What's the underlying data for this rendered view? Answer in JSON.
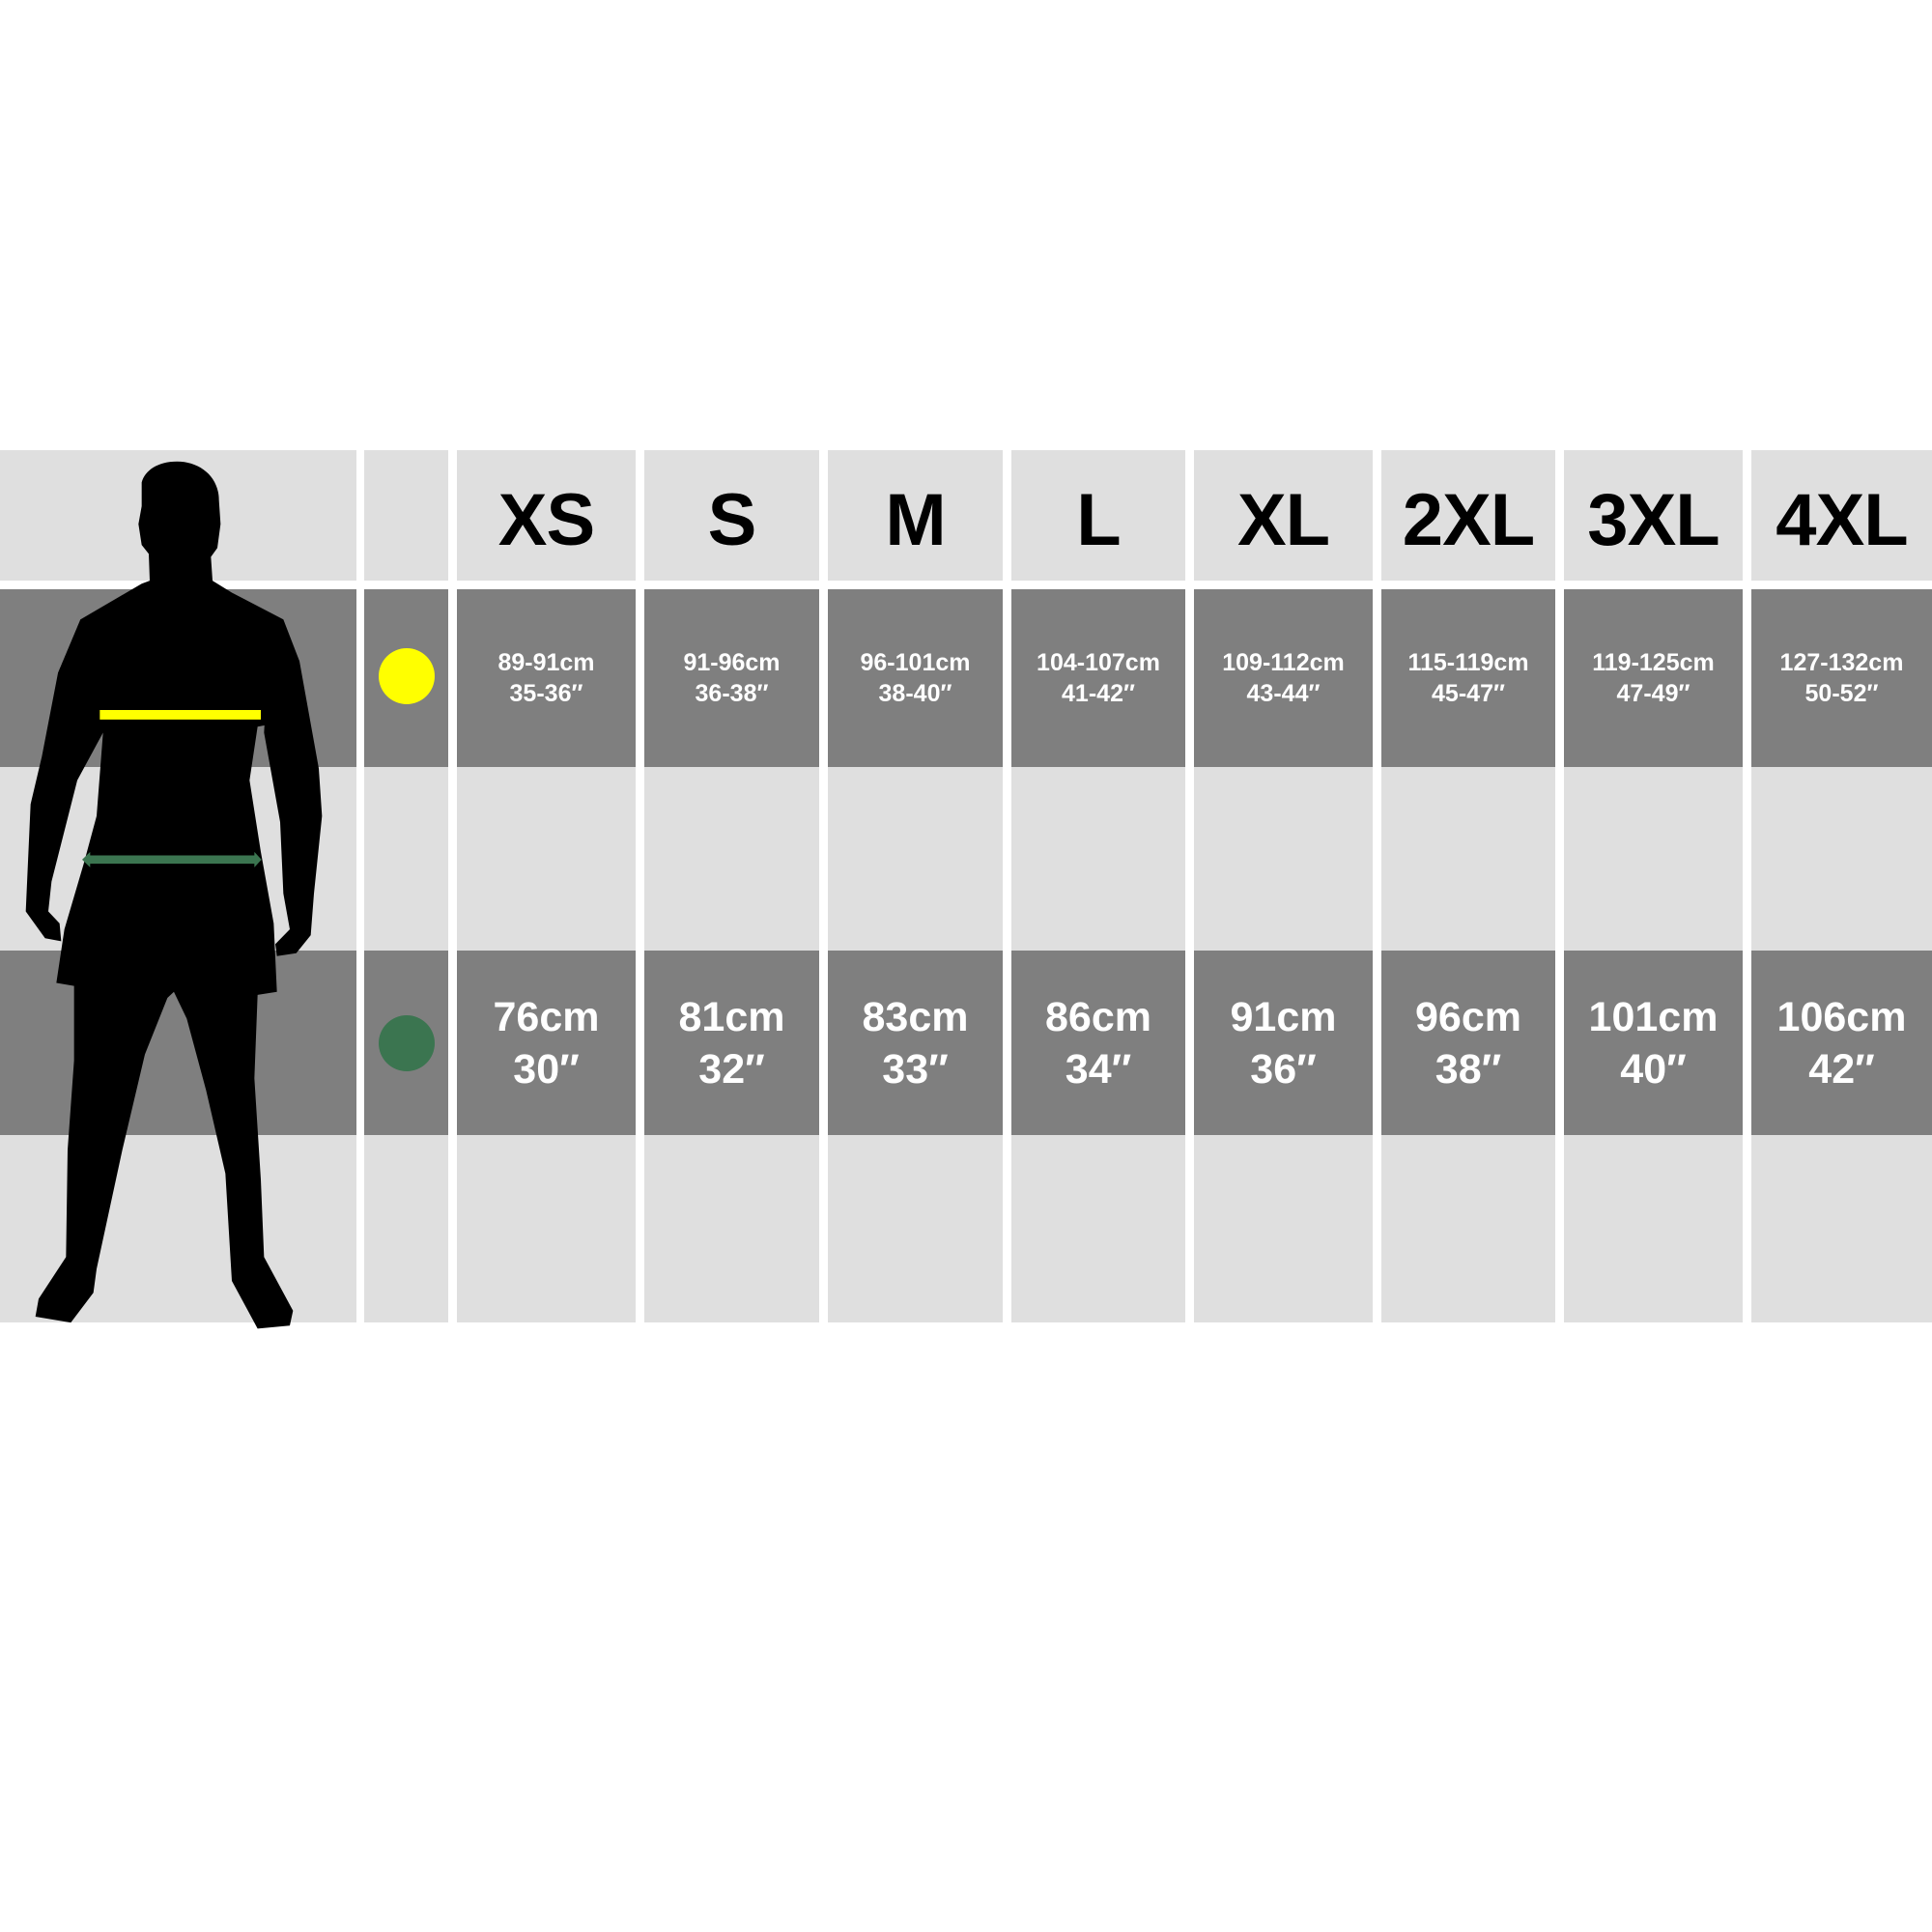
{
  "colors": {
    "chest_marker": "#ffff00",
    "waist_marker": "#3b7550",
    "light_row": "#dfdfdf",
    "dark_row": "#7f7f7f",
    "silhouette": "#000000"
  },
  "icons": {
    "chest": "yellow-dot",
    "waist": "green-dot",
    "figure": "male-silhouette"
  },
  "sizes": [
    "XS",
    "S",
    "M",
    "L",
    "XL",
    "2XL",
    "3XL",
    "4XL"
  ],
  "chest": [
    {
      "cm": "89-91cm",
      "in": "35-36″"
    },
    {
      "cm": "91-96cm",
      "in": "36-38″"
    },
    {
      "cm": "96-101cm",
      "in": "38-40″"
    },
    {
      "cm": "104-107cm",
      "in": "41-42″"
    },
    {
      "cm": "109-112cm",
      "in": "43-44″"
    },
    {
      "cm": "115-119cm",
      "in": "45-47″"
    },
    {
      "cm": "119-125cm",
      "in": "47-49″"
    },
    {
      "cm": "127-132cm",
      "in": "50-52″"
    }
  ],
  "waist": [
    {
      "cm": "76cm",
      "in": "30″"
    },
    {
      "cm": "81cm",
      "in": "32″"
    },
    {
      "cm": "83cm",
      "in": "33″"
    },
    {
      "cm": "86cm",
      "in": "34″"
    },
    {
      "cm": "91cm",
      "in": "36″"
    },
    {
      "cm": "96cm",
      "in": "38″"
    },
    {
      "cm": "101cm",
      "in": "40″"
    },
    {
      "cm": "106cm",
      "in": "42″"
    }
  ]
}
